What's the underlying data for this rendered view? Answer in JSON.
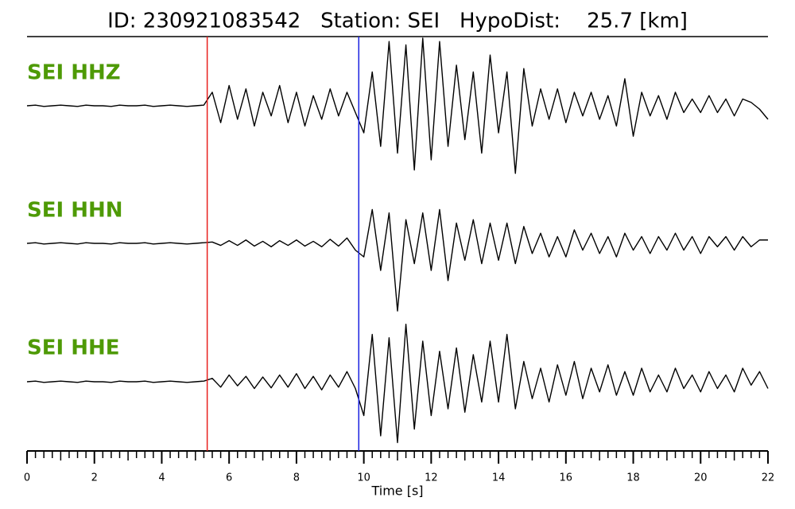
{
  "chart_data": {
    "type": "line",
    "title": "ID: 230921083542   Station: SEI   HypoDist:    25.7 [km]",
    "xlabel": "Time [s]",
    "xlim": [
      0,
      22
    ],
    "ylim": [
      -1,
      1
    ],
    "xticks": [
      0,
      2,
      4,
      6,
      8,
      10,
      12,
      14,
      16,
      18,
      20,
      22
    ],
    "xticks_minor": [
      0.25,
      0.5,
      0.75,
      1,
      1.25,
      1.5,
      1.75,
      2.25,
      2.5,
      2.75,
      3,
      3.25,
      3.5,
      3.75,
      4.25,
      4.5,
      4.75,
      5,
      5.25,
      5.5,
      5.75,
      6.25,
      6.5,
      6.75,
      7,
      7.25,
      7.5,
      7.75,
      8.25,
      8.5,
      8.75,
      9,
      9.25,
      9.5,
      9.75,
      10.25,
      10.5,
      10.75,
      11,
      11.25,
      11.5,
      11.75,
      12.25,
      12.5,
      12.75,
      13,
      13.25,
      13.5,
      13.75,
      14.25,
      14.5,
      14.75,
      15,
      15.25,
      15.5,
      15.75,
      16.25,
      16.5,
      16.75,
      17,
      17.25,
      17.5,
      17.75,
      18.25,
      18.5,
      18.75,
      19,
      19.25,
      19.5,
      19.75,
      20.25,
      20.5,
      20.75,
      21,
      21.25,
      21.5,
      21.75
    ],
    "picks": [
      {
        "value": 5.35,
        "color": "#e8201e"
      },
      {
        "value": 9.85,
        "color": "#1a22e0"
      }
    ],
    "label_color": "#4e9a06",
    "x": [
      0,
      0.25,
      0.5,
      0.75,
      1,
      1.25,
      1.5,
      1.75,
      2,
      2.25,
      2.5,
      2.75,
      3,
      3.25,
      3.5,
      3.75,
      4,
      4.25,
      4.5,
      4.75,
      5,
      5.25,
      5.5,
      5.75,
      6,
      6.25,
      6.5,
      6.75,
      7,
      7.25,
      7.5,
      7.75,
      8,
      8.25,
      8.5,
      8.75,
      9,
      9.25,
      9.5,
      9.75,
      10,
      10.25,
      10.5,
      10.75,
      11,
      11.25,
      11.5,
      11.75,
      12,
      12.25,
      12.5,
      12.75,
      13,
      13.25,
      13.5,
      13.75,
      14,
      14.25,
      14.5,
      14.75,
      15,
      15.25,
      15.5,
      15.75,
      16,
      16.25,
      16.5,
      16.75,
      17,
      17.25,
      17.5,
      17.75,
      18,
      18.25,
      18.5,
      18.75,
      19,
      19.25,
      19.5,
      19.75,
      20,
      20.25,
      20.5,
      20.75,
      21,
      21.25,
      21.5,
      21.75,
      22
    ],
    "series": [
      {
        "name": "SEI HHZ",
        "color": "#000000",
        "values": [
          0,
          0.01,
          -0.01,
          0,
          0.01,
          0,
          -0.01,
          0.01,
          0,
          0,
          -0.01,
          0.01,
          0,
          0,
          0.01,
          -0.01,
          0,
          0.01,
          0,
          -0.01,
          0,
          0.01,
          0.2,
          -0.25,
          0.3,
          -0.2,
          0.25,
          -0.3,
          0.2,
          -0.15,
          0.3,
          -0.25,
          0.2,
          -0.3,
          0.15,
          -0.2,
          0.25,
          -0.15,
          0.2,
          -0.1,
          -0.4,
          0.5,
          -0.6,
          0.95,
          -0.7,
          0.9,
          -0.95,
          1.0,
          -0.8,
          0.95,
          -0.6,
          0.6,
          -0.5,
          0.5,
          -0.7,
          0.75,
          -0.4,
          0.5,
          -1.0,
          0.55,
          -0.3,
          0.25,
          -0.2,
          0.25,
          -0.25,
          0.2,
          -0.15,
          0.2,
          -0.2,
          0.15,
          -0.3,
          0.4,
          -0.45,
          0.2,
          -0.15,
          0.15,
          -0.2,
          0.2,
          -0.1,
          0.1,
          -0.1,
          0.15,
          -0.1,
          0.1,
          -0.15,
          0.1,
          0.05,
          -0.05,
          -0.2
        ]
      },
      {
        "name": "SEI HHN",
        "color": "#000000",
        "values": [
          0,
          0.01,
          -0.01,
          0,
          0.01,
          0,
          -0.01,
          0.01,
          0,
          0,
          -0.01,
          0.01,
          0,
          0,
          0.01,
          -0.01,
          0,
          0.01,
          0,
          -0.01,
          0,
          0.01,
          0.02,
          -0.03,
          0.04,
          -0.03,
          0.05,
          -0.04,
          0.03,
          -0.05,
          0.04,
          -0.03,
          0.05,
          -0.04,
          0.03,
          -0.05,
          0.06,
          -0.04,
          0.08,
          -0.1,
          -0.2,
          0.5,
          -0.4,
          0.45,
          -1.0,
          0.35,
          -0.3,
          0.45,
          -0.4,
          0.5,
          -0.55,
          0.3,
          -0.25,
          0.35,
          -0.3,
          0.3,
          -0.25,
          0.3,
          -0.3,
          0.25,
          -0.15,
          0.15,
          -0.2,
          0.1,
          -0.2,
          0.2,
          -0.1,
          0.15,
          -0.15,
          0.1,
          -0.2,
          0.15,
          -0.1,
          0.1,
          -0.15,
          0.1,
          -0.1,
          0.15,
          -0.1,
          0.1,
          -0.15,
          0.1,
          -0.05,
          0.1,
          -0.1,
          0.1,
          -0.05,
          0.05,
          0.05
        ]
      },
      {
        "name": "SEI HHE",
        "color": "#000000",
        "values": [
          0,
          0.01,
          -0.01,
          0,
          0.01,
          0,
          -0.01,
          0.01,
          0,
          0,
          -0.01,
          0.01,
          0,
          0,
          0.01,
          -0.01,
          0,
          0.01,
          0,
          -0.01,
          0,
          0.01,
          0.05,
          -0.08,
          0.1,
          -0.06,
          0.08,
          -0.1,
          0.07,
          -0.09,
          0.1,
          -0.08,
          0.12,
          -0.1,
          0.08,
          -0.12,
          0.1,
          -0.08,
          0.15,
          -0.1,
          -0.5,
          0.7,
          -0.8,
          0.65,
          -0.9,
          0.85,
          -0.7,
          0.6,
          -0.5,
          0.45,
          -0.4,
          0.5,
          -0.45,
          0.4,
          -0.3,
          0.6,
          -0.3,
          0.7,
          -0.4,
          0.3,
          -0.25,
          0.2,
          -0.3,
          0.25,
          -0.2,
          0.3,
          -0.25,
          0.2,
          -0.15,
          0.25,
          -0.2,
          0.15,
          -0.2,
          0.2,
          -0.15,
          0.1,
          -0.15,
          0.2,
          -0.1,
          0.1,
          -0.15,
          0.15,
          -0.1,
          0.1,
          -0.15,
          0.2,
          -0.05,
          0.15,
          -0.1
        ]
      }
    ]
  }
}
